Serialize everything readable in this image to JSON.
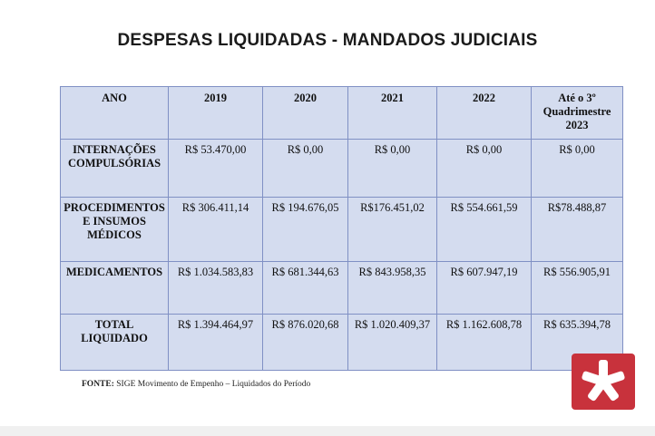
{
  "title": "DESPESAS LIQUIDADAS - MANDADOS JUDICIAIS",
  "table": {
    "headers": [
      "ANO",
      "2019",
      "2020",
      "2021",
      "2022",
      "Até o 3º Quadrimestre 2023"
    ],
    "rows": [
      {
        "label": "INTERNAÇÕES COMPULSÓRIAS",
        "values": [
          "R$ 53.470,00",
          "R$ 0,00",
          "R$ 0,00",
          "R$ 0,00",
          "R$ 0,00"
        ]
      },
      {
        "label": "PROCEDIMENTOS E INSUMOS MÉDICOS",
        "values": [
          "R$ 306.411,14",
          "R$ 194.676,05",
          "R$176.451,02",
          "R$ 554.661,59",
          "R$78.488,87"
        ]
      },
      {
        "label": "MEDICAMENTOS",
        "values": [
          "R$ 1.034.583,83",
          "R$ 681.344,63",
          "R$ 843.958,35",
          "R$ 607.947,19",
          "R$ 556.905,91"
        ]
      },
      {
        "label": "TOTAL LIQUIDADO",
        "values": [
          "R$ 1.394.464,97",
          "R$ 876.020,68",
          "R$ 1.020.409,37",
          "R$ 1.162.608,78",
          "R$ 635.394,78"
        ]
      }
    ]
  },
  "source": {
    "label": "FONTE:",
    "text": "SIGE Movimento de Empenho – Liquidados do Período"
  },
  "logo": {
    "icon": "asterisk-logo-icon",
    "color": "#c8323c"
  }
}
